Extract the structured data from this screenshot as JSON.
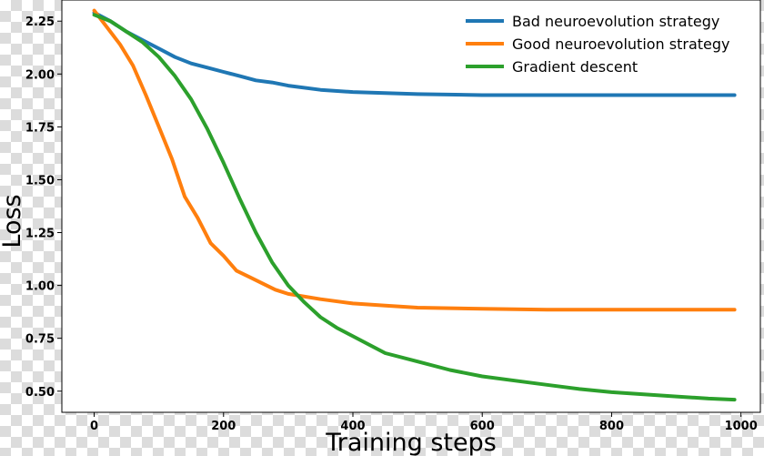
{
  "chart_data": {
    "type": "line",
    "title": "",
    "xlabel": "Training steps",
    "ylabel": "Loss",
    "xlim": [
      -50,
      1030
    ],
    "ylim": [
      0.4,
      2.35
    ],
    "x_ticks": [
      0,
      200,
      400,
      600,
      800,
      1000
    ],
    "y_ticks": [
      0.5,
      0.75,
      1.0,
      1.25,
      1.5,
      1.75,
      2.0,
      2.25
    ],
    "x_tick_labels": [
      "0",
      "200",
      "400",
      "600",
      "800",
      "1000"
    ],
    "y_tick_labels": [
      "0.50",
      "0.75",
      "1.00",
      "1.25",
      "1.50",
      "1.75",
      "2.00",
      "2.25"
    ],
    "grid": false,
    "legend_position": "top-right",
    "series": [
      {
        "name": "Bad neuroevolution strategy",
        "color": "#1f77b4",
        "x": [
          0,
          25,
          50,
          75,
          100,
          125,
          150,
          175,
          200,
          225,
          250,
          275,
          300,
          350,
          400,
          450,
          500,
          600,
          700,
          800,
          990
        ],
        "y": [
          2.29,
          2.25,
          2.2,
          2.16,
          2.12,
          2.08,
          2.05,
          2.03,
          2.01,
          1.99,
          1.97,
          1.96,
          1.945,
          1.925,
          1.915,
          1.91,
          1.905,
          1.9,
          1.9,
          1.9,
          1.9
        ]
      },
      {
        "name": "Good neuroevolution strategy",
        "color": "#ff7f0e",
        "x": [
          0,
          20,
          40,
          60,
          80,
          100,
          120,
          140,
          160,
          180,
          200,
          220,
          240,
          260,
          280,
          300,
          350,
          400,
          450,
          500,
          600,
          700,
          800,
          990
        ],
        "y": [
          2.3,
          2.22,
          2.14,
          2.04,
          1.9,
          1.75,
          1.6,
          1.42,
          1.32,
          1.2,
          1.14,
          1.07,
          1.04,
          1.01,
          0.98,
          0.96,
          0.935,
          0.915,
          0.905,
          0.895,
          0.89,
          0.885,
          0.885,
          0.885
        ]
      },
      {
        "name": "Gradient descent",
        "color": "#2ca02c",
        "x": [
          0,
          25,
          50,
          75,
          100,
          125,
          150,
          175,
          200,
          225,
          250,
          275,
          300,
          325,
          350,
          375,
          400,
          450,
          500,
          550,
          600,
          650,
          700,
          750,
          800,
          850,
          900,
          950,
          990
        ],
        "y": [
          2.28,
          2.25,
          2.2,
          2.15,
          2.08,
          1.99,
          1.88,
          1.74,
          1.58,
          1.41,
          1.25,
          1.11,
          1.0,
          0.92,
          0.85,
          0.8,
          0.76,
          0.68,
          0.64,
          0.6,
          0.57,
          0.55,
          0.53,
          0.51,
          0.495,
          0.485,
          0.475,
          0.465,
          0.46
        ]
      }
    ]
  }
}
